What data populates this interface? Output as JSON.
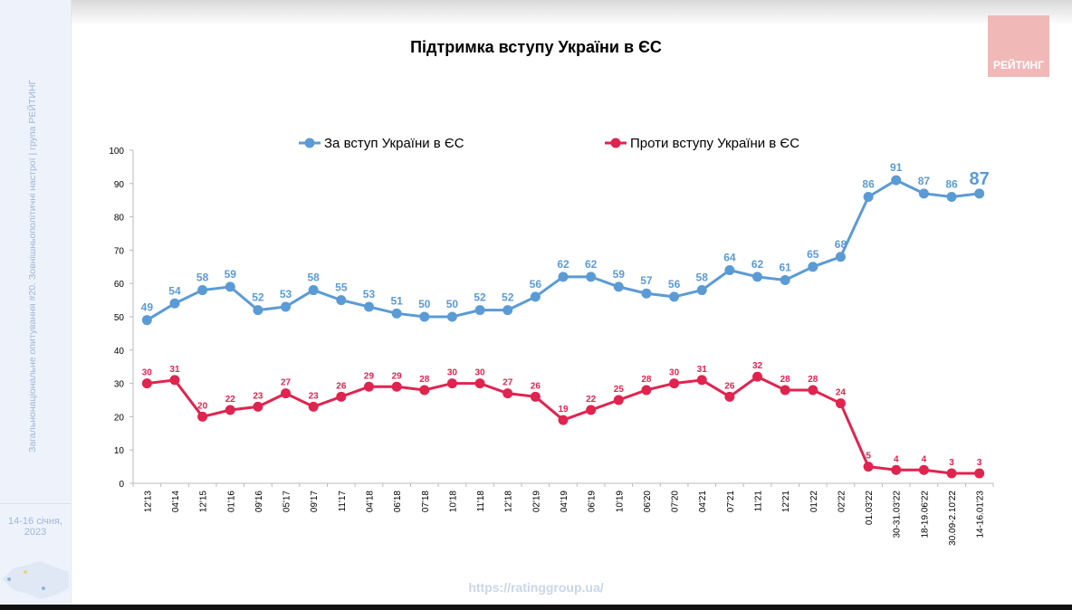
{
  "sidebar": {
    "survey_text": "Загальнонаціональне опитування #20. Зовнішньополітичні настрої | група РЕЙТИНГ",
    "date": "14-16 січня, 2023"
  },
  "logo": {
    "text": "РЕЙТИНГ"
  },
  "footer": {
    "url": "https://ratinggroup.ua/"
  },
  "colors": {
    "for": "#5b9bd5",
    "against": "#e0244f"
  },
  "chart_data": {
    "type": "line",
    "title": "Підтримка вступу України в ЄС",
    "xlabel": "",
    "ylabel": "",
    "ylim": [
      0,
      100
    ],
    "yticks": [
      0,
      10,
      20,
      30,
      40,
      50,
      60,
      70,
      80,
      90,
      100
    ],
    "grid": false,
    "legend_position": "top",
    "categories": [
      "12'13",
      "04'14",
      "12'15",
      "01'16",
      "09'16",
      "05'17",
      "09'17",
      "11'17",
      "04'18",
      "06'18",
      "07'18",
      "10'18",
      "11'18",
      "12'18",
      "02'19",
      "04'19",
      "06'19",
      "10'19",
      "06'20",
      "07'20",
      "04'21",
      "07'21",
      "11'21",
      "12'21",
      "01'22",
      "02'22",
      "01.03'22",
      "30-31.03'22",
      "18-19.06'22",
      "30.09-2.10'22",
      "14-16.01'23"
    ],
    "series": [
      {
        "name": "За вступ України в ЄС",
        "color": "#5b9bd5",
        "values": [
          49,
          54,
          58,
          59,
          52,
          53,
          58,
          55,
          53,
          51,
          50,
          50,
          52,
          52,
          56,
          62,
          62,
          59,
          57,
          56,
          58,
          64,
          62,
          61,
          65,
          68,
          86,
          91,
          87,
          86,
          87
        ]
      },
      {
        "name": "Проти вступу України в ЄС",
        "color": "#e0244f",
        "values": [
          30,
          31,
          20,
          22,
          23,
          27,
          23,
          26,
          29,
          29,
          28,
          30,
          30,
          27,
          26,
          19,
          22,
          25,
          28,
          30,
          31,
          26,
          32,
          28,
          28,
          24,
          5,
          4,
          4,
          3,
          3
        ]
      }
    ]
  }
}
